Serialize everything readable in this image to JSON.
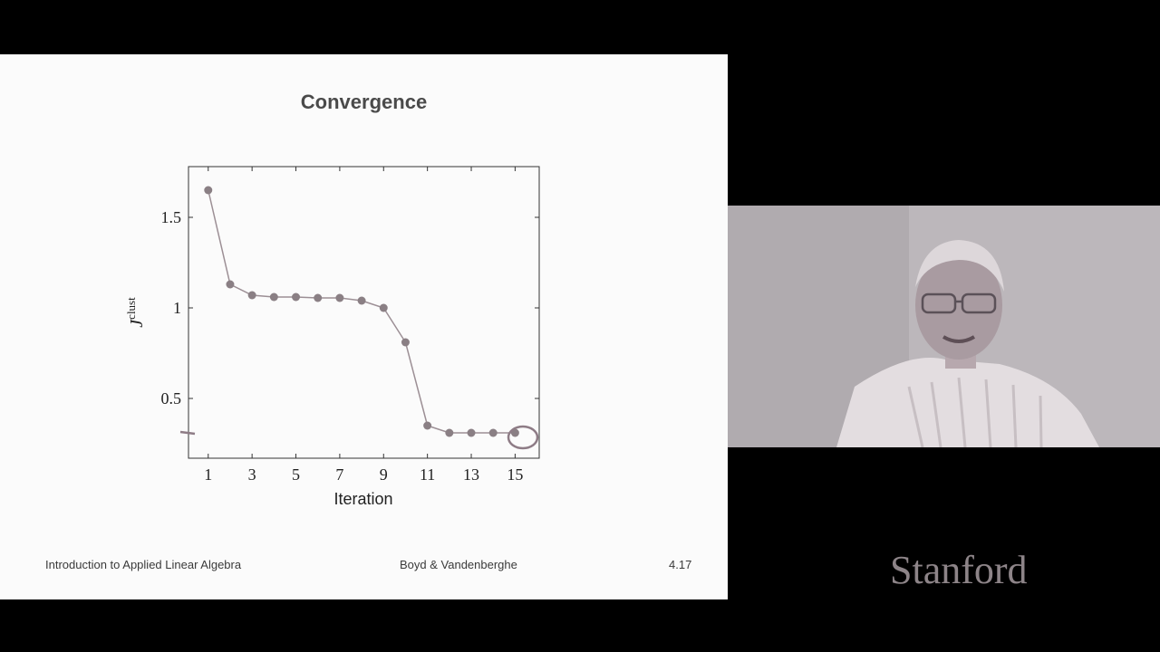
{
  "slide": {
    "title": "Convergence",
    "footer_left": "Introduction to Applied Linear Algebra",
    "footer_center": "Boyd & Vandenberghe",
    "footer_right": "4.17"
  },
  "chart_data": {
    "type": "line",
    "xlabel": "Iteration",
    "ylabel_main": "J",
    "ylabel_sup": "clust",
    "x": [
      1,
      2,
      3,
      4,
      5,
      6,
      7,
      8,
      9,
      10,
      11,
      12,
      13,
      14,
      15
    ],
    "values": [
      1.65,
      1.13,
      1.07,
      1.06,
      1.06,
      1.055,
      1.055,
      1.04,
      1.0,
      0.81,
      0.35,
      0.31,
      0.31,
      0.31,
      0.31
    ],
    "xlim": [
      0.1,
      16.1
    ],
    "ylim": [
      0.17,
      1.78
    ],
    "xticks": [
      "1",
      "3",
      "5",
      "7",
      "9",
      "11",
      "13",
      "15"
    ],
    "xtick_values": [
      1,
      3,
      5,
      7,
      9,
      11,
      13,
      15
    ],
    "yticks": [
      "0.5",
      "1",
      "1.5"
    ],
    "ytick_values": [
      0.5,
      1,
      1.5
    ],
    "grid": false,
    "colors": {
      "line": "#9c8f95",
      "marker": "#8a7f84",
      "axis": "#333333",
      "annotation": "#8e7c86"
    },
    "annotation": "circled-last-point"
  },
  "branding": {
    "wordmark": "Stanford",
    "color": "#8d8488"
  },
  "webcam": {
    "description_icon": "presenter-video-icon"
  }
}
